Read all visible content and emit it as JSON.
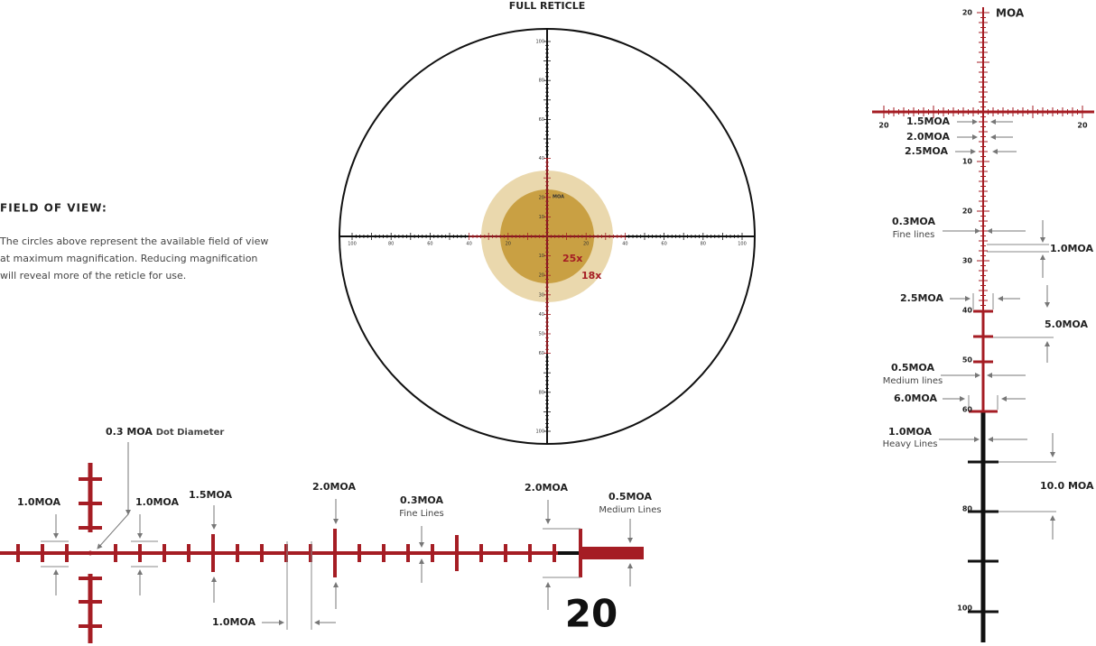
{
  "title": "FULL RETICLE",
  "field_of_view": {
    "heading": "FIELD OF VIEW:",
    "lines": [
      "The circles above represent the available field of view",
      "at maximum magnification. Reducing magnification",
      "will reveal more of the reticle for use."
    ]
  },
  "full_reticle": {
    "up": [
      100,
      80,
      60,
      40,
      20,
      10
    ],
    "down": [
      10,
      20,
      30,
      40,
      50,
      60,
      80,
      100
    ],
    "left": [
      100,
      80,
      60,
      40,
      20
    ],
    "right": [
      20,
      40,
      60,
      80,
      100
    ],
    "unit": "MOA",
    "mag_high": "25x",
    "mag_low": "18x"
  },
  "detail_vertical": {
    "up": [
      20
    ],
    "unit": "MOA",
    "left": [
      20
    ],
    "right": [
      20
    ],
    "down": [
      10,
      20,
      30,
      40,
      50,
      60,
      80,
      100
    ],
    "callouts": [
      {
        "label": "1.5MOA"
      },
      {
        "label": "2.0MOA"
      },
      {
        "label": "2.5MOA"
      },
      {
        "label": "0.3MOA",
        "note": "Fine lines"
      },
      {
        "label": "1.0MOA"
      },
      {
        "label": "2.5MOA"
      },
      {
        "label": "5.0MOA"
      },
      {
        "label": "0.5MOA",
        "note": "Medium lines"
      },
      {
        "label": "6.0MOA"
      },
      {
        "label": "1.0MOA",
        "note": "Heavy Lines"
      },
      {
        "label": "10.0 MOA"
      }
    ]
  },
  "detail_horizontal": {
    "callouts": [
      {
        "label": "0.3 MOA",
        "note": "Dot Diameter"
      },
      {
        "label": "1.0MOA"
      },
      {
        "label": "1.0MOA"
      },
      {
        "label": "1.5MOA"
      },
      {
        "label": "2.0MOA"
      },
      {
        "label": "0.3MOA",
        "note": "Fine Lines"
      },
      {
        "label": "2.0MOA"
      },
      {
        "label": "0.5MOA",
        "note": "Medium Lines"
      },
      {
        "label": "1.0MOA"
      }
    ],
    "scale_label": "20"
  }
}
